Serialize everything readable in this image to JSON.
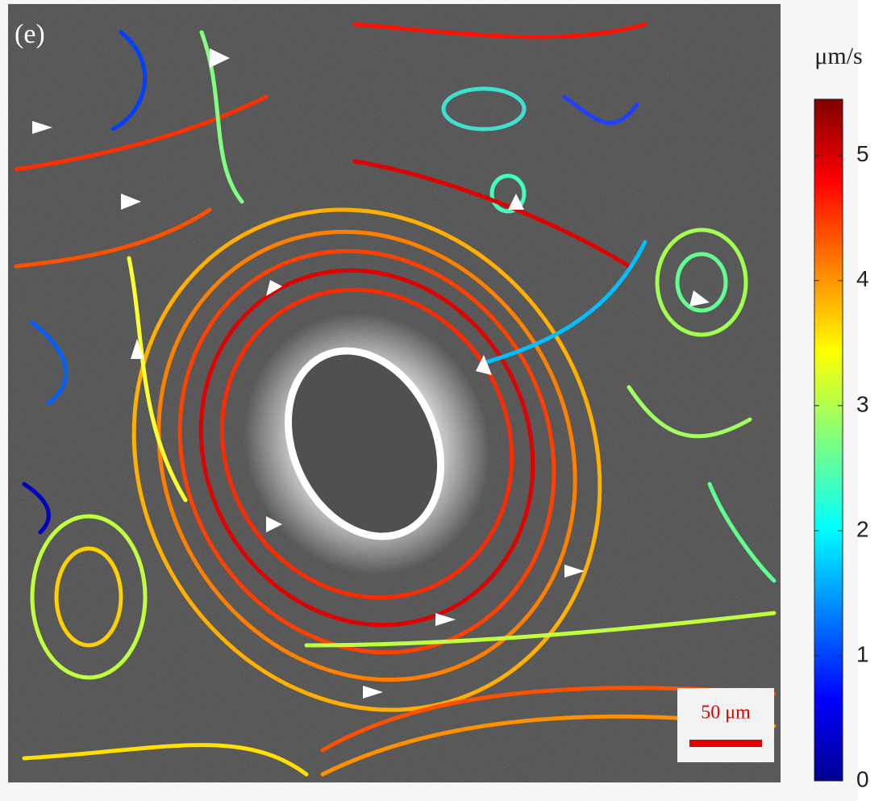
{
  "chart_data": {
    "type": "streamplot",
    "panel_label": "(e)",
    "colorbar": {
      "label": "μm/s",
      "lim": [
        0,
        5.45
      ],
      "ticks": [
        0,
        1,
        2,
        3,
        4,
        5
      ]
    },
    "scale_bar": "50 μm"
  }
}
